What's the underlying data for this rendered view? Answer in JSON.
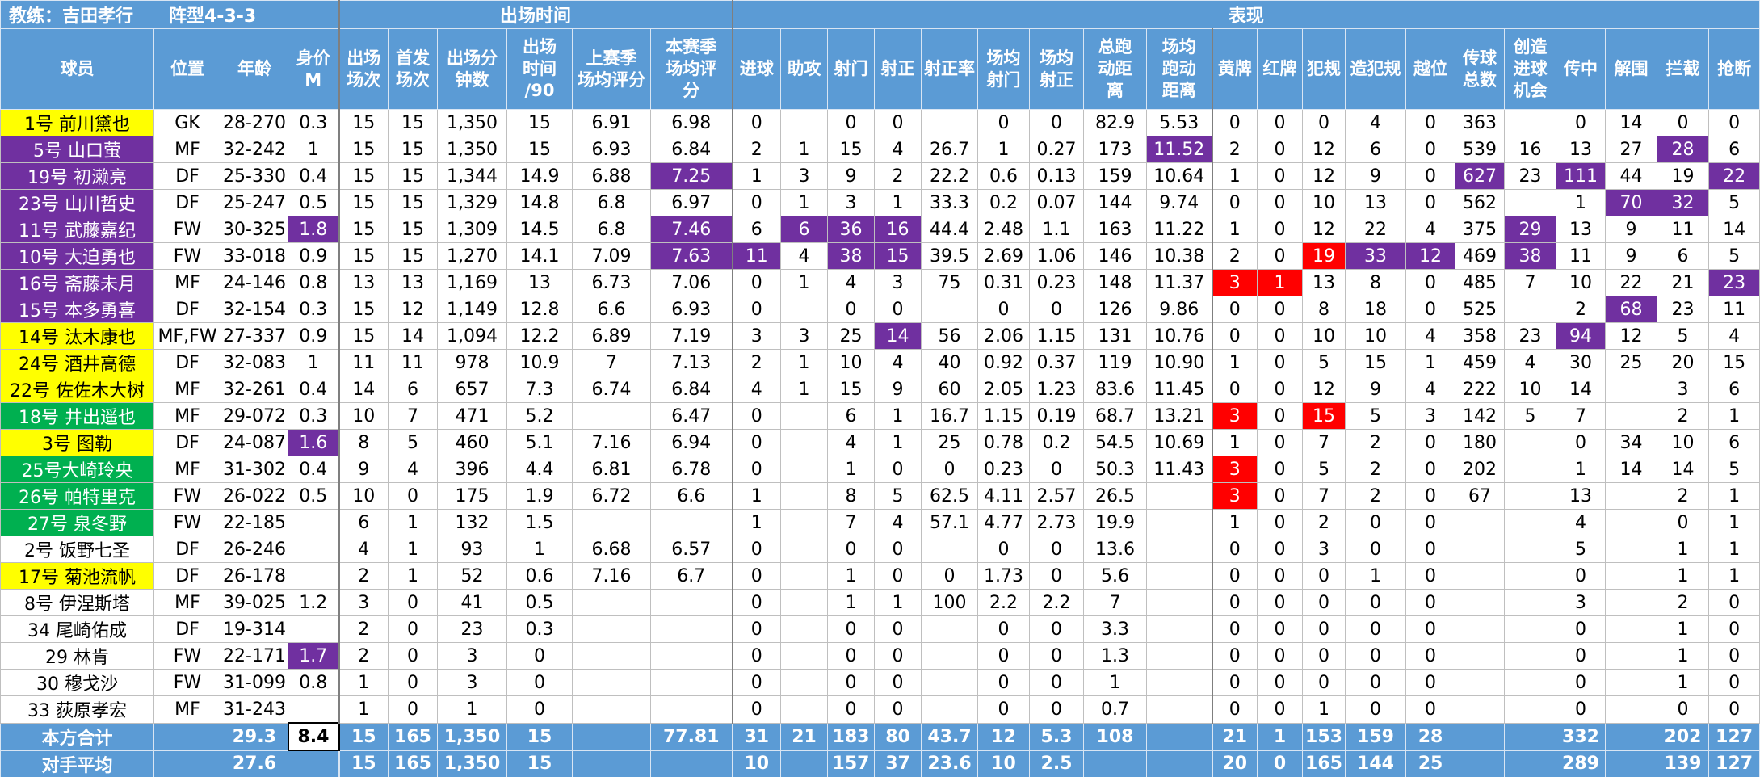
{
  "header": {
    "coach": "教练：吉田孝行　　阵型4-3-3",
    "groups": [
      "出场时间",
      "表现"
    ]
  },
  "table": {
    "columns": [
      "球员",
      "位置",
      "年龄",
      "身价\nM",
      "出场\n场次",
      "首发\n场次",
      "出场分\n钟数",
      "出场\n时间\n/90",
      "上赛季\n场均评分",
      "本赛季\n场均评\n分",
      "进球",
      "助攻",
      "射门",
      "射正",
      "射正率",
      "场均\n射门",
      "场均\n射正",
      "总跑\n动距\n离",
      "场均\n跑动\n距离",
      "黄牌",
      "红牌",
      "犯规",
      "造犯规",
      "越位",
      "传球\n总数",
      "创造\n进球\n机会",
      "传中",
      "解围",
      "拦截",
      "抢断"
    ],
    "rows": [
      [
        {
          "text": "1号 前川黛也",
          "fill": "#ffff00"
        },
        "GK",
        "28-270",
        "0.3",
        "15",
        "15",
        "1,350",
        "15",
        "6.91",
        "6.98",
        "0",
        null,
        "0",
        "0",
        null,
        "0",
        "0",
        "82.9",
        "5.53",
        "0",
        "0",
        "0",
        "4",
        "0",
        "363",
        null,
        "0",
        "14",
        "0",
        "0"
      ],
      [
        {
          "text": "5号 山口萤",
          "fill": "#7030a0"
        },
        "MF",
        "32-242",
        "1",
        "15",
        "15",
        "1,350",
        "15",
        "6.93",
        "6.84",
        "2",
        "1",
        "15",
        "4",
        "26.7",
        "1",
        "0.27",
        "173",
        {
          "text": "11.52",
          "fill": "#7030a0"
        },
        "2",
        "0",
        "12",
        "6",
        "0",
        "539",
        "16",
        "13",
        "27",
        {
          "text": "28",
          "fill": "#7030a0"
        },
        "6"
      ],
      [
        {
          "text": "19号 初濑亮",
          "fill": "#7030a0"
        },
        "DF",
        "25-330",
        "0.4",
        "15",
        "15",
        "1,344",
        "14.9",
        "6.88",
        {
          "text": "7.25",
          "fill": "#7030a0"
        },
        "1",
        "3",
        "9",
        "2",
        "22.2",
        "0.6",
        "0.13",
        "159",
        "10.64",
        "1",
        "0",
        "12",
        "9",
        "0",
        {
          "text": "627",
          "fill": "#7030a0"
        },
        "23",
        {
          "text": "111",
          "fill": "#7030a0"
        },
        "44",
        "19",
        {
          "text": "22",
          "fill": "#7030a0"
        }
      ],
      [
        {
          "text": "23号 山川哲史",
          "fill": "#7030a0"
        },
        "DF",
        "25-247",
        "0.5",
        "15",
        "15",
        "1,329",
        "14.8",
        "6.8",
        "6.97",
        "0",
        "1",
        "3",
        "1",
        "33.3",
        "0.2",
        "0.07",
        "144",
        "9.74",
        "0",
        "0",
        "10",
        "13",
        "0",
        "562",
        null,
        "1",
        {
          "text": "70",
          "fill": "#7030a0"
        },
        {
          "text": "32",
          "fill": "#7030a0"
        },
        "5"
      ],
      [
        {
          "text": "11号 武藤嘉纪",
          "fill": "#7030a0"
        },
        "FW",
        "30-325",
        {
          "text": "1.8",
          "fill": "#7030a0"
        },
        "15",
        "15",
        "1,309",
        "14.5",
        "6.8",
        {
          "text": "7.46",
          "fill": "#7030a0"
        },
        "6",
        {
          "text": "6",
          "fill": "#7030a0"
        },
        {
          "text": "36",
          "fill": "#7030a0"
        },
        {
          "text": "16",
          "fill": "#7030a0"
        },
        "44.4",
        "2.48",
        "1.1",
        "163",
        "11.22",
        "1",
        "0",
        "12",
        "22",
        "4",
        "375",
        {
          "text": "29",
          "fill": "#7030a0"
        },
        "13",
        "9",
        "11",
        "14"
      ],
      [
        {
          "text": "10号 大迫勇也",
          "fill": "#7030a0"
        },
        "FW",
        "33-018",
        "0.9",
        "15",
        "15",
        "1,270",
        "14.1",
        "7.09",
        {
          "text": "7.63",
          "fill": "#7030a0"
        },
        {
          "text": "11",
          "fill": "#7030a0"
        },
        "4",
        {
          "text": "38",
          "fill": "#7030a0"
        },
        {
          "text": "15",
          "fill": "#7030a0"
        },
        "39.5",
        "2.69",
        "1.06",
        "146",
        "10.38",
        "2",
        "0",
        {
          "text": "19",
          "fill": "#ff0000"
        },
        {
          "text": "33",
          "fill": "#7030a0"
        },
        {
          "text": "12",
          "fill": "#7030a0"
        },
        "469",
        {
          "text": "38",
          "fill": "#7030a0"
        },
        "11",
        "9",
        "6",
        "5"
      ],
      [
        {
          "text": "16号 斋藤未月",
          "fill": "#7030a0"
        },
        "MF",
        "24-146",
        "0.8",
        "13",
        "13",
        "1,169",
        "13",
        "6.73",
        "7.06",
        "0",
        "1",
        "4",
        "3",
        "75",
        "0.31",
        "0.23",
        "148",
        "11.37",
        {
          "text": "3",
          "fill": "#ff0000"
        },
        {
          "text": "1",
          "fill": "#ff0000"
        },
        "13",
        "8",
        "0",
        "485",
        "7",
        "10",
        "22",
        "21",
        {
          "text": "23",
          "fill": "#7030a0"
        }
      ],
      [
        {
          "text": "15号 本多勇喜",
          "fill": "#7030a0"
        },
        "DF",
        "32-154",
        "0.3",
        "15",
        "12",
        "1,149",
        "12.8",
        "6.6",
        "6.93",
        "0",
        null,
        "0",
        "0",
        null,
        "0",
        "0",
        "126",
        "9.86",
        "0",
        "0",
        "8",
        "18",
        "0",
        "525",
        null,
        "2",
        {
          "text": "68",
          "fill": "#7030a0"
        },
        "23",
        "11"
      ],
      [
        {
          "text": "14号 汰木康也",
          "fill": "#ffff00"
        },
        "MF,FW",
        "27-337",
        "0.9",
        "15",
        "14",
        "1,094",
        "12.2",
        "6.89",
        "7.19",
        "3",
        "3",
        "25",
        {
          "text": "14",
          "fill": "#7030a0"
        },
        "56",
        "2.06",
        "1.15",
        "131",
        "10.76",
        "0",
        "0",
        "10",
        "10",
        "4",
        "358",
        "23",
        {
          "text": "94",
          "fill": "#7030a0"
        },
        "12",
        "5",
        "4"
      ],
      [
        {
          "text": "24号 酒井高德",
          "fill": "#ffff00"
        },
        "DF",
        "32-083",
        "1",
        "11",
        "11",
        "978",
        "10.9",
        "7",
        "7.13",
        "2",
        "1",
        "10",
        "4",
        "40",
        "0.92",
        "0.37",
        "119",
        "10.90",
        "1",
        "0",
        "5",
        "15",
        "1",
        "459",
        "4",
        "30",
        "25",
        "20",
        "15"
      ],
      [
        {
          "text": "22号 佐佐木大树",
          "fill": "#ffff00"
        },
        "MF",
        "32-261",
        "0.4",
        "14",
        "6",
        "657",
        "7.3",
        "6.74",
        "6.84",
        "4",
        "1",
        "15",
        "9",
        "60",
        "2.05",
        "1.23",
        "83.6",
        "11.45",
        "0",
        "0",
        "12",
        "9",
        "4",
        "222",
        "10",
        "14",
        null,
        "3",
        "6"
      ],
      [
        {
          "text": "18号 井出遥也",
          "fill": "#00b050"
        },
        "MF",
        "29-072",
        "0.3",
        "10",
        "7",
        "471",
        "5.2",
        null,
        "6.47",
        "0",
        null,
        "6",
        "1",
        "16.7",
        "1.15",
        "0.19",
        "68.7",
        "13.21",
        {
          "text": "3",
          "fill": "#ff0000"
        },
        "0",
        {
          "text": "15",
          "fill": "#ff0000"
        },
        "5",
        "3",
        "142",
        "5",
        "7",
        null,
        "2",
        "1"
      ],
      [
        {
          "text": "3号 图勒",
          "fill": "#ffff00"
        },
        "DF",
        "24-087",
        {
          "text": "1.6",
          "fill": "#7030a0"
        },
        "8",
        "5",
        "460",
        "5.1",
        "7.16",
        "6.94",
        "0",
        null,
        "4",
        "1",
        "25",
        "0.78",
        "0.2",
        "54.5",
        "10.69",
        "1",
        "0",
        "7",
        "2",
        "0",
        "180",
        null,
        "0",
        "34",
        "10",
        "6"
      ],
      [
        {
          "text": "25号大崎玲央",
          "fill": "#00b050"
        },
        "MF",
        "31-302",
        "0.4",
        "9",
        "4",
        "396",
        "4.4",
        "6.81",
        "6.78",
        "0",
        null,
        "1",
        "0",
        "0",
        "0.23",
        "0",
        "50.3",
        "11.43",
        {
          "text": "3",
          "fill": "#ff0000"
        },
        "0",
        "5",
        "2",
        "0",
        "202",
        null,
        "1",
        "14",
        "14",
        "5"
      ],
      [
        {
          "text": "26号 帕特里克",
          "fill": "#00b050"
        },
        "FW",
        "26-022",
        "0.5",
        "10",
        "0",
        "175",
        "1.9",
        "6.72",
        "6.6",
        "1",
        null,
        "8",
        "5",
        "62.5",
        "4.11",
        "2.57",
        "26.5",
        null,
        {
          "text": "3",
          "fill": "#ff0000"
        },
        "0",
        "7",
        "2",
        "0",
        "67",
        null,
        "13",
        null,
        "2",
        "1"
      ],
      [
        {
          "text": "27号 泉冬野",
          "fill": "#00b050"
        },
        "FW",
        "22-185",
        null,
        "6",
        "1",
        "132",
        "1.5",
        null,
        null,
        "1",
        null,
        "7",
        "4",
        "57.1",
        "4.77",
        "2.73",
        "19.9",
        null,
        "1",
        "0",
        "2",
        "0",
        "0",
        null,
        null,
        "4",
        null,
        "0",
        "1"
      ],
      [
        "2号 饭野七圣",
        "DF",
        "26-246",
        null,
        "4",
        "1",
        "93",
        "1",
        "6.68",
        "6.57",
        "0",
        null,
        "0",
        "0",
        null,
        "0",
        "0",
        "13.6",
        null,
        "0",
        "0",
        "3",
        "0",
        "0",
        null,
        null,
        "5",
        null,
        "1",
        "1"
      ],
      [
        {
          "text": "17号 菊池流帆",
          "fill": "#ffff00"
        },
        "DF",
        "26-178",
        null,
        "2",
        "1",
        "52",
        "0.6",
        "7.16",
        "6.7",
        "0",
        null,
        "1",
        "0",
        "0",
        "1.73",
        "0",
        "5.6",
        null,
        "0",
        "0",
        "0",
        "1",
        "0",
        null,
        null,
        "0",
        null,
        "1",
        "1"
      ],
      [
        "8号 伊涅斯塔",
        "MF",
        "39-025",
        "1.2",
        "3",
        "0",
        "41",
        "0.5",
        null,
        null,
        "0",
        null,
        "1",
        "1",
        "100",
        "2.2",
        "2.2",
        "7",
        null,
        "0",
        "0",
        "0",
        "0",
        "0",
        null,
        null,
        "3",
        null,
        "2",
        "0"
      ],
      [
        "34 尾崎佑成",
        "DF",
        "19-314",
        null,
        "2",
        "0",
        "23",
        "0.3",
        null,
        null,
        "0",
        null,
        "0",
        "0",
        null,
        "0",
        "0",
        "3.3",
        null,
        "0",
        "0",
        "0",
        "0",
        "0",
        null,
        null,
        "0",
        null,
        "1",
        "0"
      ],
      [
        "29 林肯",
        "FW",
        "22-171",
        {
          "text": "1.7",
          "fill": "#7030a0"
        },
        "2",
        "0",
        "3",
        "0",
        null,
        null,
        "0",
        null,
        "0",
        "0",
        null,
        "0",
        "0",
        "1.3",
        null,
        "0",
        "0",
        "0",
        "0",
        "0",
        null,
        null,
        "0",
        null,
        "1",
        "0"
      ],
      [
        "30 穆戈沙",
        "FW",
        "31-099",
        "0.8",
        "1",
        "0",
        "3",
        "0",
        null,
        null,
        "0",
        null,
        "0",
        "0",
        null,
        "0",
        "0",
        "1",
        null,
        "0",
        "0",
        "0",
        "0",
        "0",
        null,
        null,
        "0",
        null,
        "1",
        "0"
      ],
      [
        "33 荻原孝宏",
        "MF",
        "31-243",
        null,
        "1",
        "0",
        "1",
        "0",
        null,
        null,
        "0",
        null,
        "0",
        "0",
        null,
        "0",
        "0",
        "0.7",
        null,
        "0",
        "0",
        "1",
        "0",
        "0",
        null,
        null,
        "0",
        null,
        "0",
        "0"
      ]
    ],
    "summary": [
      [
        "本方合计",
        null,
        "29.3",
        {
          "text": "8.4",
          "fill": "#ffffff"
        },
        "15",
        "165",
        "1,350",
        "15",
        null,
        "77.81",
        "31",
        "21",
        "183",
        "80",
        "43.7",
        "12",
        "5.3",
        "108",
        null,
        "21",
        "1",
        "153",
        "159",
        "28",
        null,
        null,
        "332",
        null,
        "202",
        "127"
      ],
      [
        "对手平均",
        null,
        "27.6",
        null,
        "15",
        "165",
        "1,350",
        "15",
        null,
        null,
        "10",
        null,
        "157",
        "37",
        "23.6",
        "10",
        "2.5",
        null,
        null,
        "20",
        "0",
        "165",
        "144",
        "25",
        null,
        null,
        "289",
        null,
        "139",
        "127"
      ]
    ]
  }
}
